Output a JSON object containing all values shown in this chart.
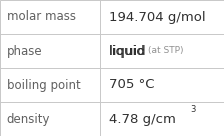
{
  "rows": [
    {
      "label": "molar mass",
      "value": "194.704 g/mol",
      "superscript": null,
      "small_suffix": null
    },
    {
      "label": "phase",
      "value": "liquid",
      "superscript": null,
      "small_suffix": "at STP"
    },
    {
      "label": "boiling point",
      "value": "705 °C",
      "superscript": null,
      "small_suffix": null
    },
    {
      "label": "density",
      "value": "4.78 g/cm",
      "superscript": "3",
      "small_suffix": null
    }
  ],
  "bg_color": "#ffffff",
  "border_color": "#c8c8c8",
  "label_color": "#606060",
  "value_color": "#303030",
  "small_suffix_color": "#909090",
  "divider_color": "#c8c8c8",
  "label_fontsize": 8.5,
  "value_fontsize": 9.5,
  "small_fontsize": 6.5,
  "super_fontsize": 6.0,
  "col_split": 0.445
}
